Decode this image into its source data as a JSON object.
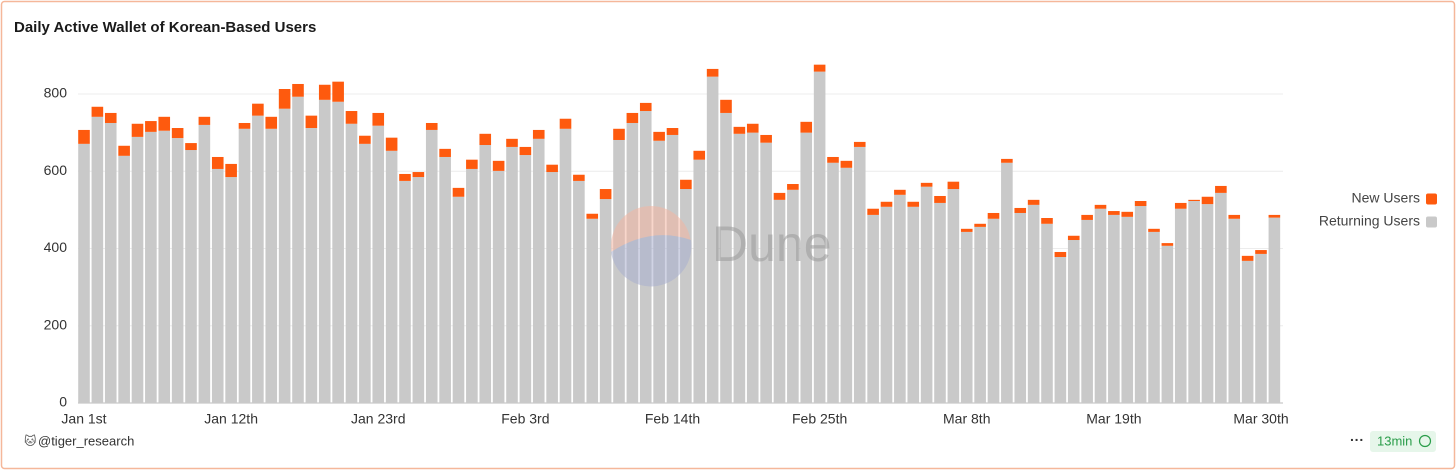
{
  "chart_data": {
    "type": "stacked_bar",
    "title": "Daily Active Wallet of Korean-Based Users",
    "watermark": "Dune",
    "categories": [
      "Jan 1st",
      null,
      null,
      null,
      null,
      null,
      null,
      null,
      null,
      null,
      null,
      "Jan 12th",
      null,
      null,
      null,
      null,
      null,
      null,
      null,
      null,
      null,
      null,
      "Jan 23rd",
      null,
      null,
      null,
      null,
      null,
      null,
      null,
      null,
      null,
      null,
      "Feb 3rd",
      null,
      null,
      null,
      null,
      null,
      null,
      null,
      null,
      null,
      null,
      "Feb 14th",
      null,
      null,
      null,
      null,
      null,
      null,
      null,
      null,
      null,
      null,
      "Feb 25th",
      null,
      null,
      null,
      null,
      null,
      null,
      null,
      null,
      null,
      null,
      "Mar 8th",
      null,
      null,
      null,
      null,
      null,
      null,
      null,
      null,
      null,
      null,
      "Mar 19th",
      null,
      null,
      null,
      null,
      null,
      null,
      null,
      null,
      null,
      null,
      "Mar 30th",
      null
    ],
    "series": [
      {
        "name": "New Users",
        "color": "#fe5a0e",
        "values": [
          36,
          26,
          26,
          26,
          34,
          28,
          36,
          26,
          18,
          21,
          31,
          34,
          15,
          31,
          31,
          51,
          33,
          32,
          39,
          52,
          33,
          21,
          33,
          34,
          18,
          13,
          18,
          21,
          23,
          24,
          29,
          26,
          21,
          21,
          23,
          19,
          26,
          16,
          13,
          26,
          29,
          26,
          21,
          23,
          18,
          24,
          23,
          20,
          34,
          18,
          23,
          20,
          18,
          15,
          28,
          18,
          15,
          18,
          13,
          16,
          13,
          13,
          13,
          10,
          18,
          19,
          8,
          8,
          15,
          10,
          13,
          13,
          15,
          13,
          11,
          13,
          10,
          10,
          13,
          13,
          8,
          7,
          15,
          3,
          19,
          18,
          10,
          13,
          10,
          7
        ]
      },
      {
        "name": "Returning Users",
        "color": "#c9c9c9",
        "values": [
          671,
          741,
          725,
          640,
          689,
          702,
          705,
          686,
          655,
          720,
          606,
          585,
          710,
          744,
          710,
          762,
          793,
          712,
          785,
          780,
          723,
          671,
          718,
          653,
          575,
          585,
          707,
          637,
          534,
          606,
          668,
          601,
          663,
          642,
          684,
          598,
          710,
          575,
          477,
          528,
          681,
          725,
          756,
          679,
          694,
          554,
          630,
          845,
          751,
          697,
          700,
          674,
          526,
          552,
          700,
          858,
          622,
          609,
          663,
          487,
          508,
          539,
          508,
          560,
          518,
          554,
          443,
          456,
          477,
          622,
          492,
          513,
          464,
          378,
          422,
          474,
          503,
          487,
          482,
          510,
          443,
          407,
          503,
          523,
          515,
          544,
          477,
          368,
          386,
          480
        ]
      }
    ],
    "ylim": [
      0,
      900
    ],
    "yticks": [
      0,
      200,
      400,
      600,
      800
    ],
    "grid": true,
    "legend": "right"
  },
  "footer": {
    "author": "@tiger_research",
    "refresh": "13min"
  }
}
